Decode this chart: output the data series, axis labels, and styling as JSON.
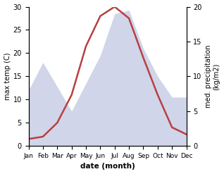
{
  "months": [
    "Jan",
    "Feb",
    "Mar",
    "Apr",
    "May",
    "Jun",
    "Jul",
    "Aug",
    "Sep",
    "Oct",
    "Nov",
    "Dec"
  ],
  "temperature": [
    1.5,
    2.0,
    5.0,
    11.0,
    21.5,
    28.0,
    30.0,
    27.5,
    19.0,
    11.0,
    4.0,
    2.5
  ],
  "precipitation": [
    8.0,
    12.0,
    8.5,
    5.0,
    9.0,
    13.0,
    19.0,
    19.5,
    14.0,
    10.0,
    7.0,
    7.0
  ],
  "temp_color": "#b84040",
  "precip_fill_color": "#b8bfdf",
  "precip_fill_alpha": 0.65,
  "temp_ylim": [
    0,
    30
  ],
  "precip_ylim": [
    0,
    20
  ],
  "temp_yticks": [
    0,
    5,
    10,
    15,
    20,
    25,
    30
  ],
  "precip_yticks": [
    0,
    5,
    10,
    15,
    20
  ],
  "xlabel": "date (month)",
  "ylabel_left": "max temp (C)",
  "ylabel_right": "med. precipitation\n(kg/m2)",
  "background_color": "#ffffff"
}
